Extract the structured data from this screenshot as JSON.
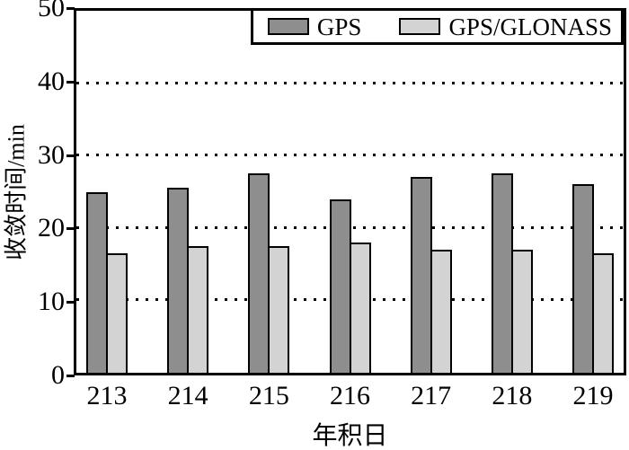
{
  "chart_data": {
    "type": "bar",
    "title": "",
    "categories": [
      "213",
      "214",
      "215",
      "216",
      "217",
      "218",
      "219"
    ],
    "series": [
      {
        "name": "GPS",
        "color": "#8e8e8e",
        "values": [
          25,
          25.5,
          27.5,
          24,
          27,
          27.5,
          26
        ]
      },
      {
        "name": "GPS/GLONASS",
        "color": "#d3d3d3",
        "values": [
          16.5,
          17.5,
          17.5,
          18,
          17,
          17,
          16.5
        ]
      }
    ],
    "xlabel": "年积日",
    "ylabel": "收敛时间/min",
    "ylim": [
      0,
      50
    ],
    "yticks": [
      0,
      10,
      20,
      30,
      40,
      50
    ],
    "gridlines": [
      10,
      20,
      30,
      40
    ],
    "grid_style": "dotted",
    "legend_position": "top-right",
    "bar_border_color": "#000000",
    "axis_color": "#000000",
    "background_color": "#ffffff"
  }
}
